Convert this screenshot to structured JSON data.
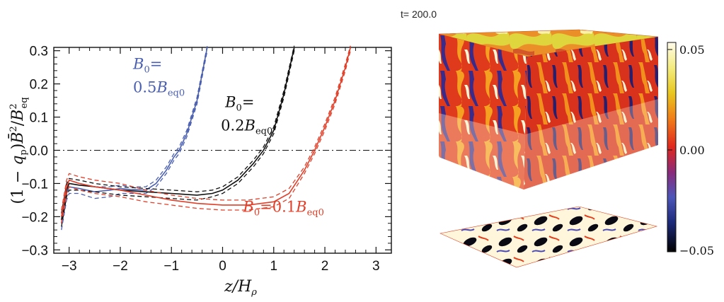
{
  "chart_data": [
    {
      "type": "line",
      "xlabel": "z/Hρ",
      "ylabel": "(1 − qp) B̄²/B²eq",
      "xlim": [
        -3.3,
        3.3
      ],
      "ylim": [
        -0.31,
        0.31
      ],
      "xticks": [
        "−3",
        "−2",
        "−1",
        "0",
        "1",
        "2",
        "3"
      ],
      "yticks": [
        "0.3",
        "0.2",
        "0.1",
        "0.0",
        "−0.1",
        "−0.2",
        "−0.3"
      ],
      "reference_line": {
        "y": 0.0,
        "style": "dash-dot"
      },
      "series": [
        {
          "name": "B0=0.5Beq0",
          "color": "#4a5fb0",
          "x": [
            -3.15,
            -3.05,
            -3.0,
            -2.8,
            -2.5,
            -2.2,
            -2.0,
            -1.8,
            -1.5,
            -1.3,
            -1.1,
            -0.95,
            -0.85,
            -0.7,
            -0.5,
            -0.3
          ],
          "y": [
            -0.22,
            -0.13,
            -0.11,
            -0.115,
            -0.125,
            -0.12,
            -0.115,
            -0.118,
            -0.12,
            -0.1,
            -0.06,
            -0.02,
            0.0,
            0.05,
            0.15,
            0.31
          ],
          "y_upper": [
            -0.2,
            -0.11,
            -0.09,
            -0.1,
            -0.11,
            -0.11,
            -0.105,
            -0.11,
            -0.11,
            -0.09,
            -0.05,
            -0.01,
            0.01,
            0.06,
            0.16,
            0.32
          ],
          "y_lower": [
            -0.24,
            -0.15,
            -0.13,
            -0.13,
            -0.145,
            -0.14,
            -0.13,
            -0.13,
            -0.13,
            -0.11,
            -0.07,
            -0.03,
            -0.01,
            0.04,
            0.14,
            0.3
          ]
        },
        {
          "name": "B0=0.2Beq0",
          "color": "#111111",
          "x": [
            -3.15,
            -3.05,
            -3.0,
            -2.8,
            -2.5,
            -2.0,
            -1.5,
            -1.0,
            -0.5,
            -0.2,
            0.0,
            0.3,
            0.6,
            0.8,
            1.0,
            1.2,
            1.4
          ],
          "y": [
            -0.21,
            -0.12,
            -0.1,
            -0.105,
            -0.11,
            -0.12,
            -0.125,
            -0.13,
            -0.135,
            -0.13,
            -0.12,
            -0.09,
            -0.04,
            0.0,
            0.06,
            0.17,
            0.31
          ],
          "y_upper": [
            -0.19,
            -0.1,
            -0.085,
            -0.09,
            -0.1,
            -0.11,
            -0.115,
            -0.12,
            -0.125,
            -0.12,
            -0.11,
            -0.08,
            -0.03,
            0.01,
            0.07,
            0.18,
            0.32
          ],
          "y_lower": [
            -0.23,
            -0.14,
            -0.12,
            -0.12,
            -0.125,
            -0.135,
            -0.14,
            -0.145,
            -0.15,
            -0.14,
            -0.13,
            -0.1,
            -0.05,
            -0.01,
            0.05,
            0.16,
            0.3
          ]
        },
        {
          "name": "B0=0.1Beq0",
          "color": "#e0402a",
          "x": [
            -3.15,
            -3.05,
            -3.0,
            -2.8,
            -2.5,
            -2.0,
            -1.5,
            -1.0,
            -0.5,
            0.0,
            0.5,
            1.0,
            1.3,
            1.6,
            1.8,
            2.0,
            2.2,
            2.4,
            2.5
          ],
          "y": [
            -0.2,
            -0.11,
            -0.09,
            -0.1,
            -0.11,
            -0.12,
            -0.135,
            -0.15,
            -0.16,
            -0.165,
            -0.165,
            -0.155,
            -0.13,
            -0.06,
            0.0,
            0.07,
            0.15,
            0.25,
            0.31
          ],
          "y_upper": [
            -0.18,
            -0.09,
            -0.07,
            -0.08,
            -0.09,
            -0.1,
            -0.12,
            -0.135,
            -0.145,
            -0.15,
            -0.15,
            -0.14,
            -0.115,
            -0.05,
            0.01,
            0.08,
            0.16,
            0.26,
            0.32
          ],
          "y_lower": [
            -0.22,
            -0.13,
            -0.11,
            -0.12,
            -0.13,
            -0.14,
            -0.155,
            -0.165,
            -0.175,
            -0.18,
            -0.18,
            -0.17,
            -0.145,
            -0.07,
            -0.01,
            0.06,
            0.14,
            0.24,
            0.3
          ]
        }
      ],
      "annotations": [
        {
          "series": 0,
          "line1": "B",
          "sub1": "0",
          "rest1": "=",
          "line2": "0.5B",
          "sub2": "eq0"
        },
        {
          "series": 1,
          "line1": "B",
          "sub1": "0",
          "rest1": "=",
          "line2": "0.2B",
          "sub2": "eq0"
        },
        {
          "series": 2,
          "line1": "B",
          "sub1": "0",
          "rest1": "=0.1B",
          "line2": "",
          "sub2": "eq0"
        }
      ]
    },
    {
      "type": "heatmap",
      "title": "t=  200.0",
      "colorbar": {
        "ticks": [
          "0.05",
          "0.00",
          "−0.05"
        ],
        "range": [
          -0.05,
          0.05
        ]
      }
    }
  ]
}
